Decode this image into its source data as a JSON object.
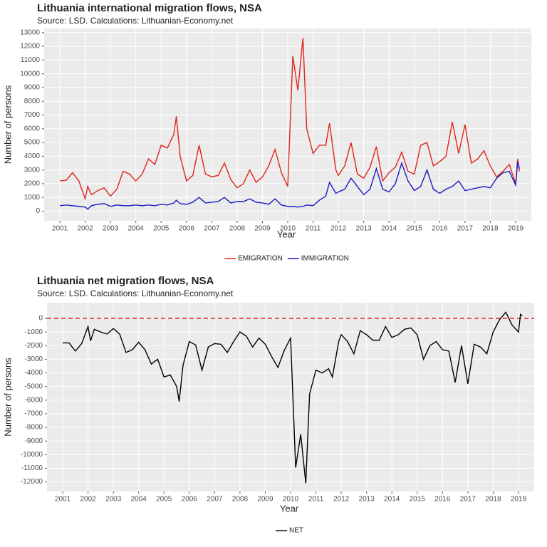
{
  "chart_data": [
    {
      "type": "line",
      "title": "Lithuania international migration flows, NSA",
      "subtitle": "Source: LSD. Calculations: Lithuanian-Economy.net",
      "x_label": "Year",
      "y_label": "Number of persons",
      "x": [
        2001.0,
        2001.25,
        2001.5,
        2001.75,
        2002.0,
        2002.1,
        2002.25,
        2002.5,
        2002.75,
        2003.0,
        2003.25,
        2003.5,
        2003.75,
        2004.0,
        2004.25,
        2004.5,
        2004.75,
        2005.0,
        2005.25,
        2005.5,
        2005.6,
        2005.75,
        2006.0,
        2006.25,
        2006.5,
        2006.75,
        2007.0,
        2007.25,
        2007.5,
        2007.75,
        2008.0,
        2008.25,
        2008.5,
        2008.75,
        2009.0,
        2009.25,
        2009.5,
        2009.75,
        2010.0,
        2010.2,
        2010.4,
        2010.6,
        2010.75,
        2011.0,
        2011.25,
        2011.5,
        2011.65,
        2011.9,
        2012.0,
        2012.25,
        2012.5,
        2012.75,
        2013.0,
        2013.25,
        2013.5,
        2013.75,
        2014.0,
        2014.25,
        2014.5,
        2014.75,
        2015.0,
        2015.25,
        2015.5,
        2015.75,
        2016.0,
        2016.25,
        2016.5,
        2016.75,
        2017.0,
        2017.25,
        2017.5,
        2017.75,
        2018.0,
        2018.25,
        2018.5,
        2018.75,
        2019.0,
        2019.08,
        2019.15
      ],
      "series": [
        {
          "name": "EMIGRATION",
          "color": "#e0241b",
          "values": [
            2200,
            2250,
            2800,
            2200,
            900,
            1800,
            1200,
            1500,
            1700,
            1100,
            1600,
            2900,
            2700,
            2200,
            2700,
            3800,
            3400,
            4800,
            4600,
            5600,
            6900,
            4000,
            2200,
            2600,
            4800,
            2700,
            2500,
            2600,
            3500,
            2300,
            1700,
            2000,
            3000,
            2100,
            2500,
            3300,
            4500,
            2800,
            1800,
            11300,
            8800,
            12600,
            6000,
            4200,
            4800,
            4800,
            6400,
            3000,
            2600,
            3300,
            5000,
            2700,
            2400,
            3200,
            4700,
            2200,
            2800,
            3200,
            4300,
            2900,
            2700,
            4800,
            5000,
            3300,
            3600,
            4000,
            6500,
            4200,
            6300,
            3500,
            3800,
            4400,
            3300,
            2500,
            2900,
            3400,
            2000,
            3800,
            2900
          ]
        },
        {
          "name": "IMMIGRATION",
          "color": "#1a1ac4",
          "values": [
            400,
            450,
            400,
            350,
            300,
            150,
            400,
            500,
            550,
            350,
            450,
            400,
            400,
            450,
            400,
            450,
            400,
            500,
            450,
            600,
            800,
            550,
            500,
            650,
            1000,
            600,
            650,
            700,
            1000,
            600,
            700,
            700,
            900,
            650,
            600,
            500,
            900,
            450,
            350,
            350,
            300,
            350,
            450,
            400,
            800,
            1100,
            2100,
            1300,
            1400,
            1600,
            2400,
            1800,
            1200,
            1600,
            3100,
            1600,
            1400,
            2000,
            3500,
            2200,
            1500,
            1800,
            3000,
            1600,
            1300,
            1600,
            1800,
            2200,
            1500,
            1600,
            1700,
            1800,
            1700,
            2400,
            2800,
            2900,
            1900,
            3600,
            3100
          ]
        }
      ],
      "xlim": [
        2000.38,
        2019.62
      ],
      "xticks": [
        2001,
        2002,
        2003,
        2004,
        2005,
        2006,
        2007,
        2008,
        2009,
        2010,
        2011,
        2012,
        2013,
        2014,
        2015,
        2016,
        2017,
        2018,
        2019
      ],
      "ylim": [
        -700,
        13300
      ],
      "yticks": [
        0,
        1000,
        2000,
        3000,
        4000,
        5000,
        6000,
        7000,
        8000,
        9000,
        10000,
        11000,
        12000,
        13000
      ],
      "grid": true,
      "legend": "bottom"
    },
    {
      "type": "line",
      "title": "Lithuania net migration flows, NSA",
      "subtitle": "Source: LSD. Calculations: Lithuanian-Economy.net",
      "x_label": "Year",
      "y_label": "Number of persons",
      "x": [
        2001.0,
        2001.25,
        2001.5,
        2001.75,
        2002.0,
        2002.1,
        2002.25,
        2002.5,
        2002.75,
        2003.0,
        2003.25,
        2003.5,
        2003.75,
        2004.0,
        2004.25,
        2004.5,
        2004.75,
        2005.0,
        2005.25,
        2005.5,
        2005.6,
        2005.75,
        2006.0,
        2006.25,
        2006.5,
        2006.75,
        2007.0,
        2007.25,
        2007.5,
        2007.75,
        2008.0,
        2008.25,
        2008.5,
        2008.75,
        2009.0,
        2009.25,
        2009.5,
        2009.75,
        2010.0,
        2010.2,
        2010.4,
        2010.6,
        2010.75,
        2011.0,
        2011.25,
        2011.5,
        2011.65,
        2011.9,
        2012.0,
        2012.25,
        2012.5,
        2012.75,
        2013.0,
        2013.25,
        2013.5,
        2013.75,
        2014.0,
        2014.25,
        2014.5,
        2014.75,
        2015.0,
        2015.25,
        2015.5,
        2015.75,
        2016.0,
        2016.25,
        2016.5,
        2016.75,
        2017.0,
        2017.25,
        2017.5,
        2017.75,
        2018.0,
        2018.25,
        2018.5,
        2018.75,
        2019.0,
        2019.08,
        2019.15
      ],
      "series": [
        {
          "name": "NET",
          "color": "#000000",
          "values": [
            -1800,
            -1800,
            -2400,
            -1850,
            -600,
            -1650,
            -800,
            -1000,
            -1150,
            -750,
            -1150,
            -2500,
            -2300,
            -1750,
            -2300,
            -3350,
            -3000,
            -4300,
            -4150,
            -5000,
            -6100,
            -3450,
            -1700,
            -1950,
            -3800,
            -2100,
            -1850,
            -1900,
            -2500,
            -1700,
            -1000,
            -1300,
            -2100,
            -1450,
            -1900,
            -2800,
            -3600,
            -2350,
            -1450,
            -10950,
            -8500,
            -12100,
            -5550,
            -3800,
            -4000,
            -3700,
            -4300,
            -1700,
            -1200,
            -1700,
            -2600,
            -900,
            -1200,
            -1600,
            -1600,
            -600,
            -1400,
            -1200,
            -800,
            -700,
            -1200,
            -3000,
            -2000,
            -1700,
            -2300,
            -2400,
            -4700,
            -2000,
            -4800,
            -1900,
            -2100,
            -2600,
            -1000,
            -100,
            450,
            -500,
            -1000,
            300,
            200
          ]
        }
      ],
      "hline": {
        "value": 0,
        "color": "#e0241b"
      },
      "xlim": [
        2000.38,
        2019.62
      ],
      "xticks": [
        2001,
        2002,
        2003,
        2004,
        2005,
        2006,
        2007,
        2008,
        2009,
        2010,
        2011,
        2012,
        2013,
        2014,
        2015,
        2016,
        2017,
        2018,
        2019
      ],
      "ylim": [
        -12700,
        1150
      ],
      "yticks": [
        0,
        -1000,
        -2000,
        -3000,
        -4000,
        -5000,
        -6000,
        -7000,
        -8000,
        -9000,
        -10000,
        -11000,
        -12000
      ],
      "grid": true,
      "legend": "bottom"
    }
  ]
}
